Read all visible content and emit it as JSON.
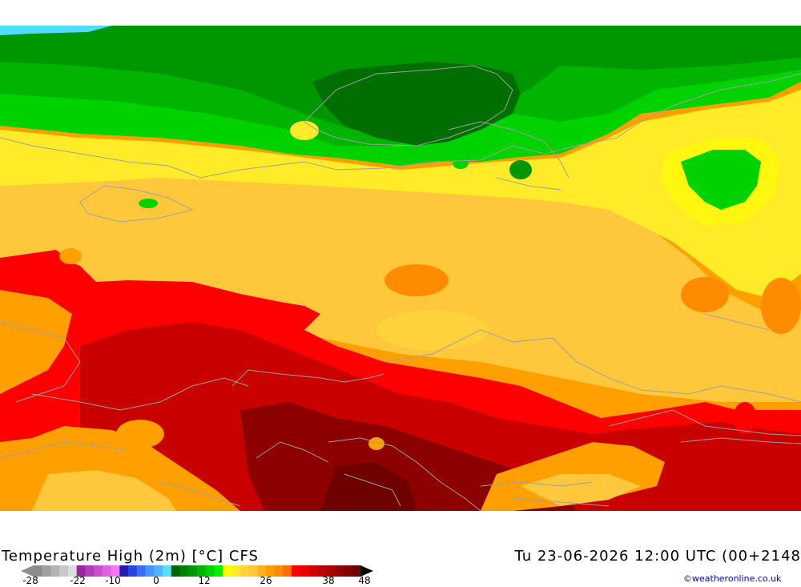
{
  "map": {
    "title": "Temperature High (2m) [°C] CFS",
    "valid_time": "Tu 23-06-2026 12:00 UTC (00+2148",
    "credit": "©weatheronline.co.uk"
  },
  "legend": {
    "ticks": [
      "-28",
      "-22",
      "-10",
      "0",
      "12",
      "26",
      "38",
      "48"
    ],
    "colors": [
      "#8c8c8c",
      "#a0a0a0",
      "#b4b4b4",
      "#c8c8c8",
      "#dcdcdc",
      "#96289c",
      "#b43cb4",
      "#c850c8",
      "#dc64dc",
      "#f078f0",
      "#1e1eb4",
      "#2846dc",
      "#3c6ef0",
      "#4696ff",
      "#50b4ff",
      "#5adcff",
      "#006400",
      "#008200",
      "#009600",
      "#00b400",
      "#00d200",
      "#00f000",
      "#ffff00",
      "#ffeb28",
      "#ffd23c",
      "#ffc83c",
      "#ffb41e",
      "#ffa000",
      "#ff8c00",
      "#ff6e00",
      "#ff0000",
      "#e60000",
      "#d20000",
      "#be0000",
      "#aa0000",
      "#960000",
      "#820000",
      "#6e0000"
    ]
  },
  "palette": {
    "dark_green": "#006e00",
    "green": "#009600",
    "bright_green": "#00d200",
    "yellow": "#ffff00",
    "light_orange": "#ffc83c",
    "orange": "#ffa000",
    "dark_orange": "#ff8c00",
    "red": "#ff0000",
    "dark_red": "#c80000",
    "maroon": "#8c0000",
    "cyan": "#50dcff"
  }
}
